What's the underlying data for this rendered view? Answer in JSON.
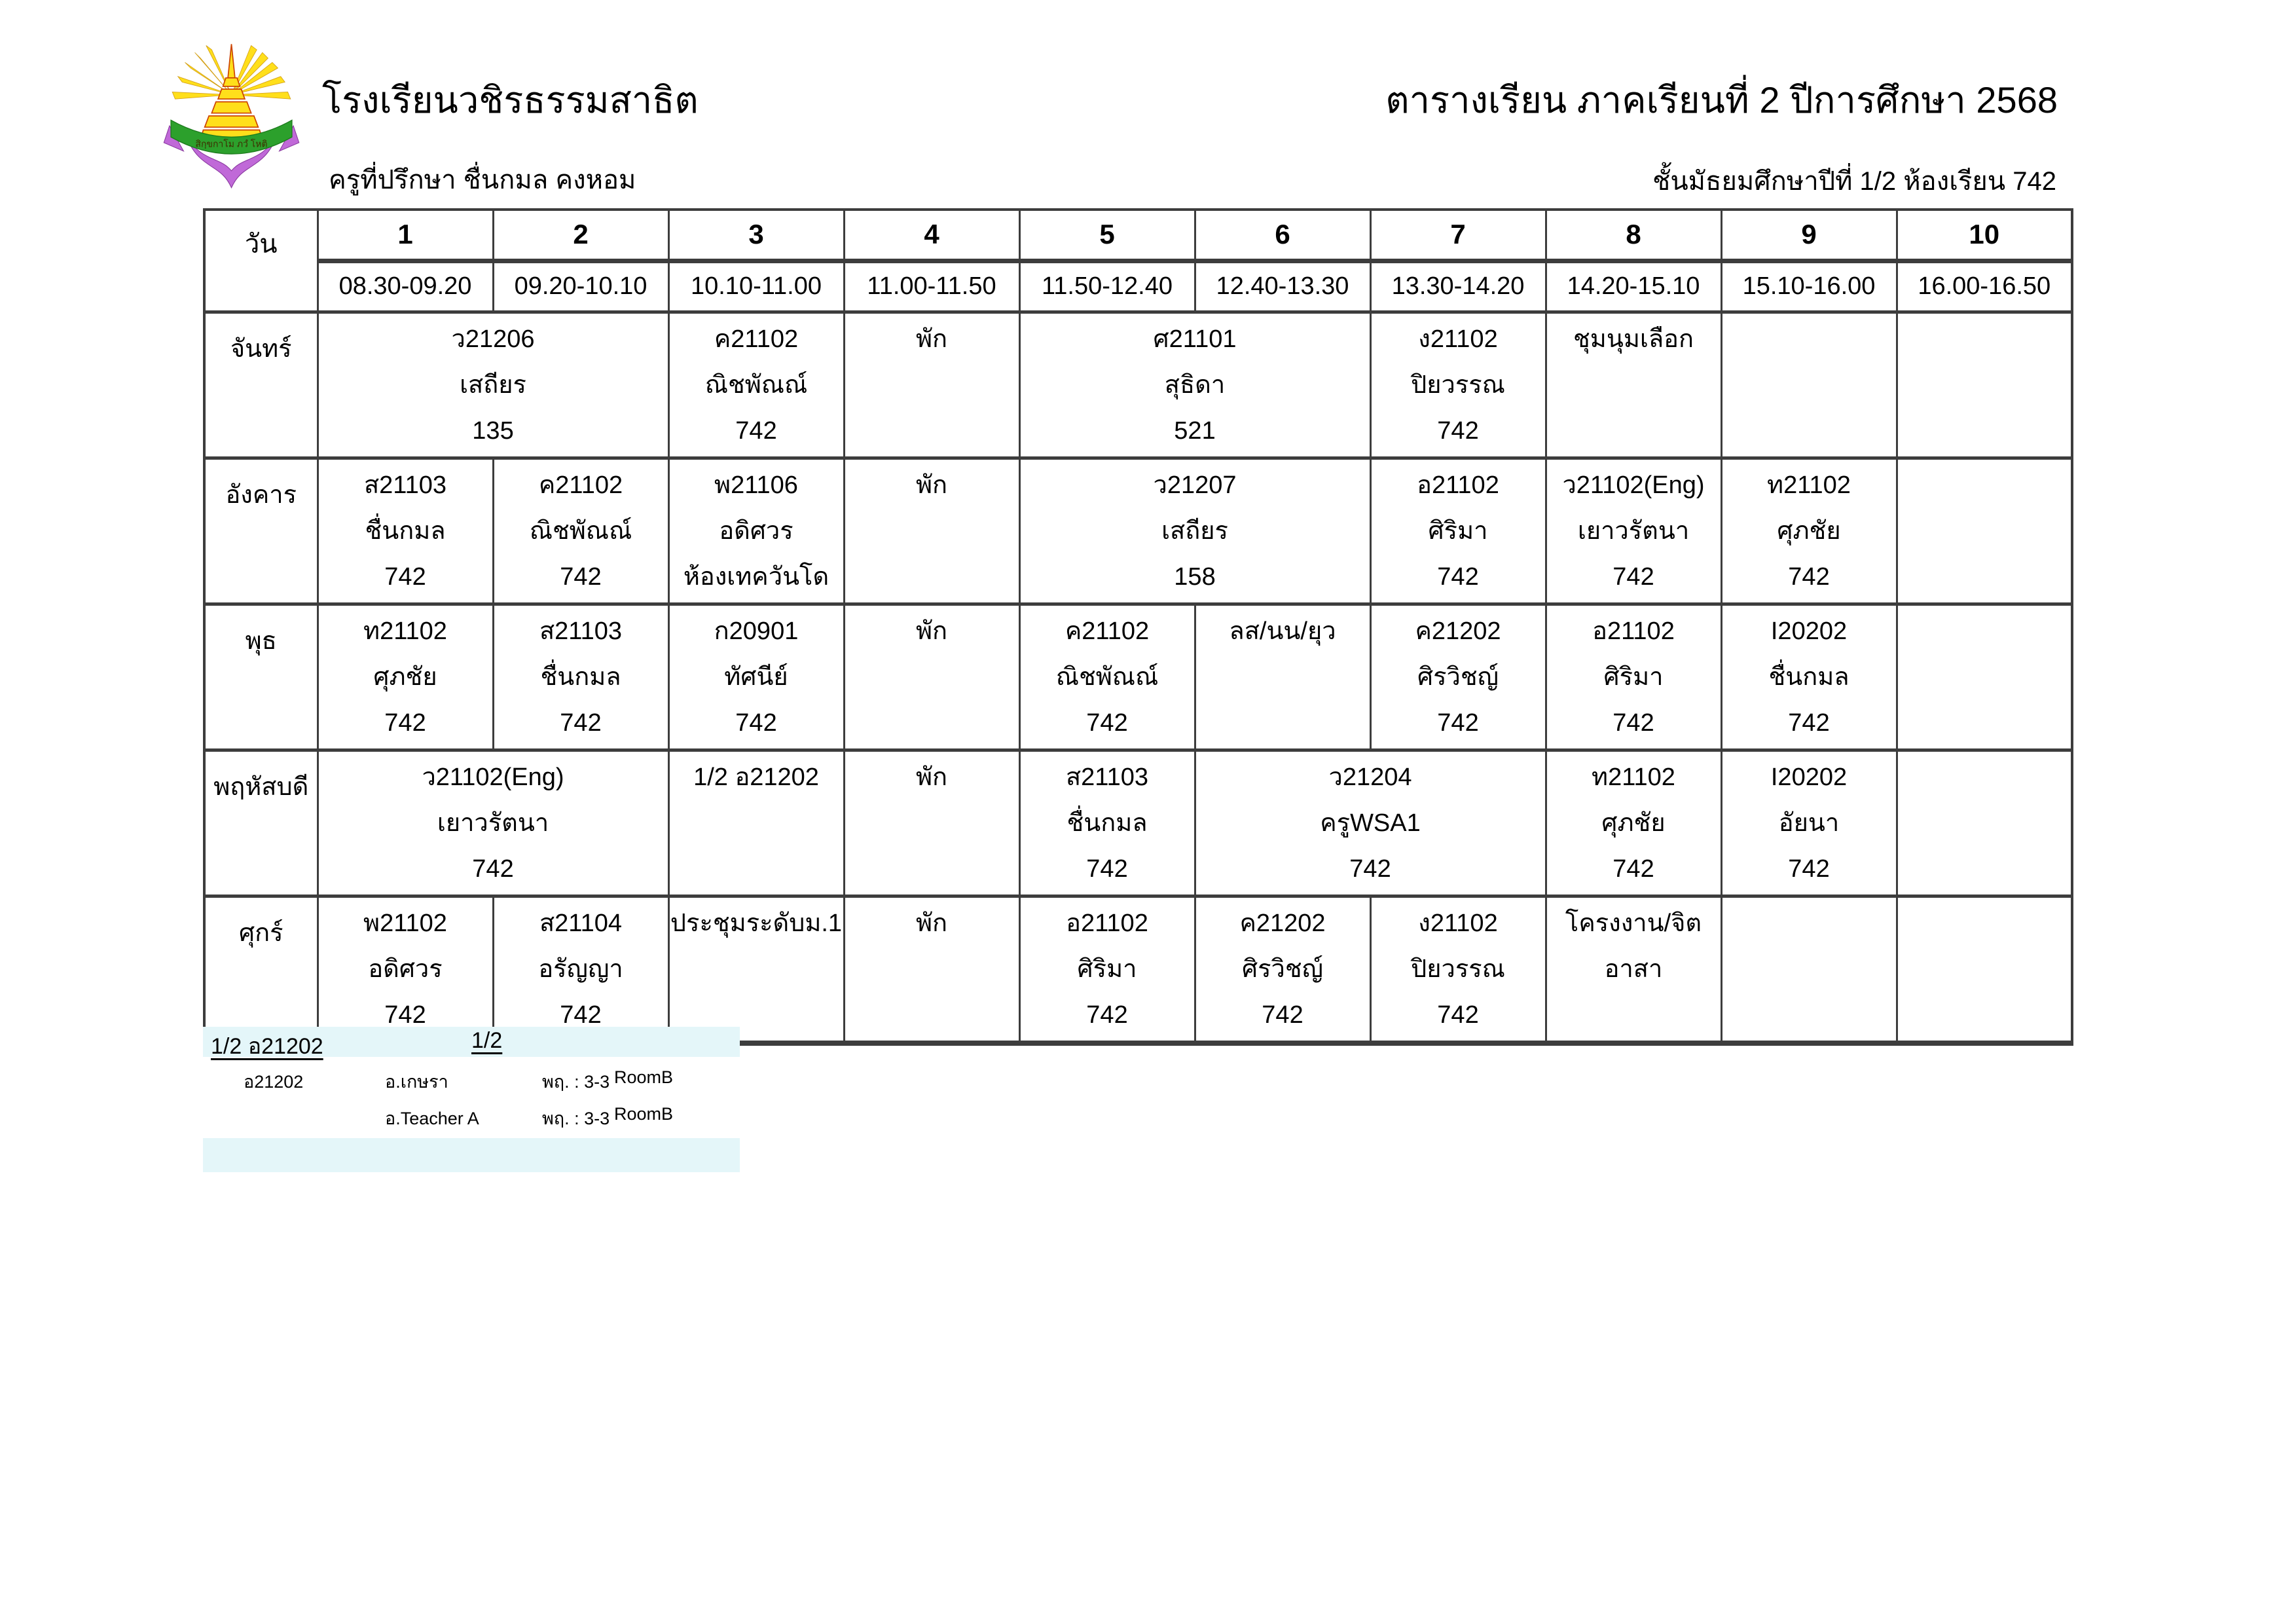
{
  "colors": {
    "page_bg": "#ffffff",
    "border": "#3d3d3d",
    "highlight": "#e4f6f9",
    "logo_yellow": "#ffdf1b",
    "logo_red": "#cc4400",
    "logo_green": "#2ca02c",
    "logo_purple": "#c069d8"
  },
  "header": {
    "school_name": "โรงเรียนวชิรธรรมสาธิต",
    "advisor": "ครูที่ปรึกษา  ชื่นกมล  คงหอม",
    "title": "ตารางเรียน ภาคเรียนที่ 2  ปีการศึกษา  2568",
    "subtitle": "ชั้นมัธยมศึกษาปีที่ 1/2   ห้องเรียน  742",
    "logo_motto": "สิกฺขกาโม ภวํ โหติ"
  },
  "table": {
    "day_header": "วัน",
    "periods": [
      "1",
      "2",
      "3",
      "4",
      "5",
      "6",
      "7",
      "8",
      "9",
      "10"
    ],
    "times": [
      "08.30-09.20",
      "09.20-10.10",
      "10.10-11.00",
      "11.00-11.50",
      "11.50-12.40",
      "12.40-13.30",
      "13.30-14.20",
      "14.20-15.10",
      "15.10-16.00",
      "16.00-16.50"
    ],
    "rows": [
      {
        "day": "จันทร์",
        "cells": [
          {
            "span": 2,
            "lines": [
              "ว21206",
              "เสถียร",
              "135"
            ]
          },
          {
            "span": 1,
            "lines": [
              "ค21102",
              "ณิชพัณณ์",
              "742"
            ]
          },
          {
            "span": 1,
            "lines": [
              "พัก",
              "",
              ""
            ]
          },
          {
            "span": 2,
            "lines": [
              "ศ21101",
              "สุธิดา",
              "521"
            ]
          },
          {
            "span": 1,
            "lines": [
              "ง21102",
              "ปิยวรรณ",
              "742"
            ]
          },
          {
            "span": 1,
            "lines": [
              "ชุมนุมเลือก",
              "",
              ""
            ]
          },
          {
            "span": 1,
            "lines": [
              "",
              "",
              ""
            ]
          },
          {
            "span": 1,
            "lines": [
              "",
              "",
              ""
            ]
          }
        ]
      },
      {
        "day": "อังคาร",
        "cells": [
          {
            "span": 1,
            "lines": [
              "ส21103",
              "ชื่นกมล",
              "742"
            ]
          },
          {
            "span": 1,
            "lines": [
              "ค21102",
              "ณิชพัณณ์",
              "742"
            ]
          },
          {
            "span": 1,
            "lines": [
              "พ21106",
              "อดิศวร",
              "ห้องเทควันโด"
            ]
          },
          {
            "span": 1,
            "lines": [
              "พัก",
              "",
              ""
            ]
          },
          {
            "span": 2,
            "lines": [
              "ว21207",
              "เสถียร",
              "158"
            ]
          },
          {
            "span": 1,
            "lines": [
              "อ21102",
              "ศิริมา",
              "742"
            ]
          },
          {
            "span": 1,
            "lines": [
              "ว21102(Eng)",
              "เยาวรัตนา",
              "742"
            ]
          },
          {
            "span": 1,
            "lines": [
              "ท21102",
              "ศุภชัย",
              "742"
            ]
          },
          {
            "span": 1,
            "lines": [
              "",
              "",
              ""
            ]
          }
        ]
      },
      {
        "day": "พุธ",
        "cells": [
          {
            "span": 1,
            "lines": [
              "ท21102",
              "ศุภชัย",
              "742"
            ]
          },
          {
            "span": 1,
            "lines": [
              "ส21103",
              "ชื่นกมล",
              "742"
            ]
          },
          {
            "span": 1,
            "lines": [
              "ก20901",
              "ทัศนีย์",
              "742"
            ]
          },
          {
            "span": 1,
            "lines": [
              "พัก",
              "",
              ""
            ]
          },
          {
            "span": 1,
            "lines": [
              "ค21102",
              "ณิชพัณณ์",
              "742"
            ]
          },
          {
            "span": 1,
            "lines": [
              "ลส/นน/ยุว",
              "",
              ""
            ]
          },
          {
            "span": 1,
            "lines": [
              "ค21202",
              "ศิรวิชญ์",
              "742"
            ]
          },
          {
            "span": 1,
            "lines": [
              "อ21102",
              "ศิริมา",
              "742"
            ]
          },
          {
            "span": 1,
            "lines": [
              "I20202",
              "ชื่นกมล",
              "742"
            ]
          },
          {
            "span": 1,
            "lines": [
              "",
              "",
              ""
            ]
          }
        ]
      },
      {
        "day": "พฤหัสบดี",
        "cells": [
          {
            "span": 2,
            "lines": [
              "ว21102(Eng)",
              "เยาวรัตนา",
              "742"
            ]
          },
          {
            "span": 1,
            "lines": [
              "1/2 อ21202",
              "",
              ""
            ]
          },
          {
            "span": 1,
            "lines": [
              "พัก",
              "",
              ""
            ]
          },
          {
            "span": 1,
            "lines": [
              "ส21103",
              "ชื่นกมล",
              "742"
            ]
          },
          {
            "span": 2,
            "lines": [
              "ว21204",
              "ครูWSA1",
              "742"
            ]
          },
          {
            "span": 1,
            "lines": [
              "ท21102",
              "ศุภชัย",
              "742"
            ]
          },
          {
            "span": 1,
            "lines": [
              "I20202",
              "อัยนา",
              "742"
            ]
          },
          {
            "span": 1,
            "lines": [
              "",
              "",
              ""
            ]
          }
        ]
      },
      {
        "day": "ศุกร์",
        "cells": [
          {
            "span": 1,
            "lines": [
              "พ21102",
              "อดิศวร",
              "742"
            ]
          },
          {
            "span": 1,
            "lines": [
              "ส21104",
              "อรัญญา",
              "742"
            ]
          },
          {
            "span": 1,
            "lines": [
              "ประชุมระดับม.1",
              "",
              ""
            ]
          },
          {
            "span": 1,
            "lines": [
              "พัก",
              "",
              ""
            ]
          },
          {
            "span": 1,
            "lines": [
              "อ21102",
              "ศิริมา",
              "742"
            ]
          },
          {
            "span": 1,
            "lines": [
              "ค21202",
              "ศิรวิชญ์",
              "742"
            ]
          },
          {
            "span": 1,
            "lines": [
              "ง21102",
              "ปิยวรรณ",
              "742"
            ]
          },
          {
            "span": 1,
            "lines": [
              "โครงงาน/จิต",
              "อาสา",
              ""
            ]
          },
          {
            "span": 1,
            "lines": [
              "",
              "",
              ""
            ]
          },
          {
            "span": 1,
            "lines": [
              "",
              "",
              ""
            ]
          }
        ]
      }
    ]
  },
  "footnote": {
    "heading_left": "1/2 อ21202",
    "heading_right": "1/2",
    "rows": [
      {
        "code": "อ21202",
        "teacher": "อ.เกษรา",
        "time": "พฤ. : 3-3",
        "room": "RoomB"
      },
      {
        "code": "",
        "teacher": "อ.Teacher A",
        "time": "พฤ. : 3-3",
        "room": "RoomB"
      }
    ]
  }
}
